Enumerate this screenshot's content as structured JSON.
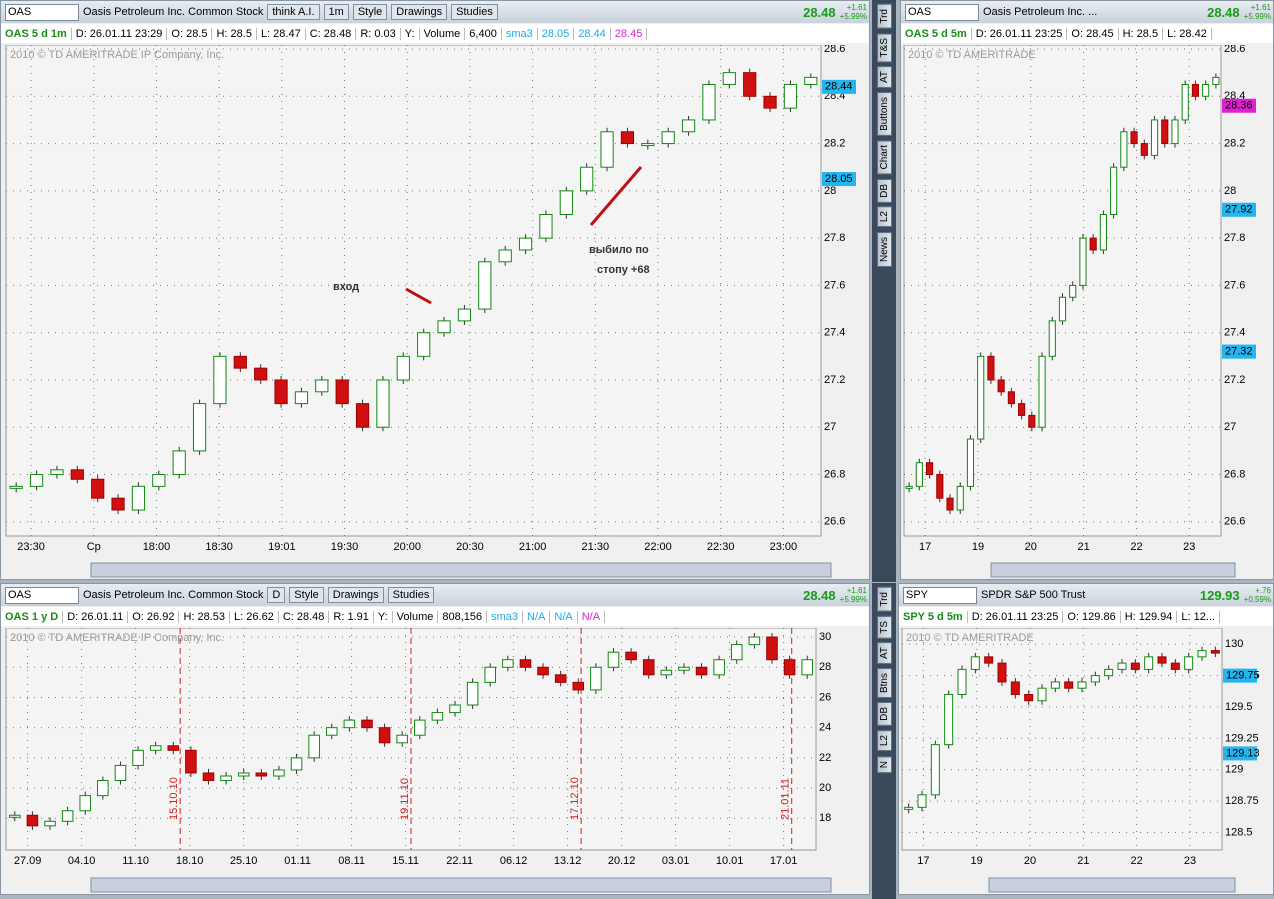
{
  "panels": [
    {
      "symbol": "OAS",
      "name": "Oasis Petroleum Inc. Common Stock",
      "buttons": [
        "think A.I.",
        "1m",
        "Style",
        "Drawings",
        "Studies"
      ],
      "price": "28.48",
      "change": [
        "+1.61",
        "+5.99%"
      ],
      "info": [
        "OAS 5 d 1m",
        "D: 26.01.11 23:29",
        "O: 28.5",
        "H: 28.5",
        "L: 28.47",
        "C: 28.48",
        "R: 0.03",
        "Y:",
        "Volume",
        "6,400",
        "sma3",
        "28.05",
        "28.44",
        "28.45"
      ],
      "copyright": "2010 © TD AMERITRADE IP Company, Inc.",
      "annotations": [
        "вход",
        "выбило по",
        "стопу +68"
      ],
      "chart": {
        "type": "candlestick",
        "closes": [
          26.75,
          26.8,
          26.82,
          26.78,
          26.7,
          26.65,
          26.75,
          26.8,
          26.9,
          27.1,
          27.3,
          27.25,
          27.2,
          27.1,
          27.15,
          27.2,
          27.1,
          27.0,
          27.2,
          27.3,
          27.4,
          27.45,
          27.5,
          27.7,
          27.75,
          27.8,
          27.9,
          28.0,
          28.1,
          28.25,
          28.2,
          28.2,
          28.25,
          28.3,
          28.45,
          28.5,
          28.4,
          28.35,
          28.45,
          28.48
        ],
        "ylim": [
          26.54,
          28.617
        ],
        "yticks": [
          26.6,
          26.8,
          27,
          27.2,
          27.4,
          27.6,
          27.8,
          28,
          28.2,
          28.4,
          28.6
        ],
        "xticks": [
          "23:30",
          "Cp",
          "18:00",
          "18:30",
          "19:01",
          "19:30",
          "20:00",
          "20:30",
          "21:00",
          "21:30",
          "22:00",
          "22:30",
          "23:00"
        ],
        "badges": [
          {
            "value": 28.44,
            "color": "#22b5ef"
          },
          {
            "value": 28.05,
            "color": "#22b5ef"
          }
        ]
      }
    },
    {
      "symbol": "OAS",
      "name": "Oasis Petroleum Inc. ...",
      "buttons": [],
      "price": "28.48",
      "change": [
        "+1.61",
        "+5.99%"
      ],
      "info": [
        "OAS 5 d 5m",
        "D: 26.01.11 23:25",
        "O: 28.45",
        "H: 28.5",
        "L: 28.42"
      ],
      "copyright": "2010 © TD AMERITRADE",
      "chart": {
        "type": "candlestick",
        "closes": [
          26.75,
          26.85,
          26.8,
          26.7,
          26.65,
          26.75,
          26.95,
          27.3,
          27.2,
          27.15,
          27.1,
          27.05,
          27.0,
          27.3,
          27.45,
          27.55,
          27.6,
          27.8,
          27.75,
          27.9,
          28.1,
          28.25,
          28.2,
          28.15,
          28.3,
          28.2,
          28.3,
          28.45,
          28.4,
          28.45,
          28.48
        ],
        "ylim": [
          26.54,
          28.617
        ],
        "yticks": [
          26.6,
          26.8,
          27,
          27.2,
          27.4,
          27.6,
          27.8,
          28,
          28.2,
          28.4,
          28.6
        ],
        "xticks": [
          "17",
          "19",
          "20",
          "21",
          "22",
          "23"
        ],
        "badges": [
          {
            "value": 28.36,
            "color": "#e020d0"
          },
          {
            "value": 27.92,
            "color": "#22b5ef"
          },
          {
            "value": 27.32,
            "color": "#22b5ef"
          }
        ]
      }
    },
    {
      "symbol": "OAS",
      "name": "Oasis Petroleum Inc. Common Stock",
      "buttons": [
        "D",
        "Style",
        "Drawings",
        "Studies"
      ],
      "price": "28.48",
      "change": [
        "+1.61",
        "+5.99%"
      ],
      "info": [
        "OAS 1 y D",
        "D: 26.01.11",
        "O: 26.92",
        "H: 28.53",
        "L: 26.62",
        "C: 28.48",
        "R: 1.91",
        "Y:",
        "Volume",
        "808,156",
        "sma3",
        "N/A",
        "N/A",
        "N/A"
      ],
      "copyright": "2010 © TD AMERITRADE IP Company, Inc.",
      "markers": [
        "15.10.10",
        "19.11.10",
        "17.12.10",
        "21.01.11"
      ],
      "chart": {
        "type": "candlestick",
        "closes": [
          18.2,
          17.5,
          17.8,
          18.5,
          19.5,
          20.5,
          21.5,
          22.5,
          22.8,
          22.5,
          21,
          20.5,
          20.8,
          21,
          20.8,
          21.2,
          22,
          23.5,
          24,
          24.5,
          24,
          23,
          23.5,
          24.5,
          25,
          25.5,
          27,
          28,
          28.5,
          28,
          27.5,
          27,
          26.5,
          28,
          29,
          28.5,
          27.5,
          27.8,
          28,
          27.5,
          28.5,
          29.5,
          30,
          28.5,
          27.5,
          28.5
        ],
        "ylim": [
          15.9,
          30.6
        ],
        "yticks": [
          18,
          20,
          22,
          24,
          26,
          28,
          30
        ],
        "xticks": [
          "27.09",
          "04.10",
          "11.10",
          "18.10",
          "25.10",
          "01.11",
          "08.11",
          "15.11",
          "22.11",
          "06.12",
          "13.12",
          "20.12",
          "03.01",
          "10.01",
          "17.01"
        ],
        "badges": []
      }
    },
    {
      "symbol": "SPY",
      "name": "SPDR S&P 500 Trust",
      "buttons": [],
      "price": "129.93",
      "change": [
        "+.76",
        "+0.59%"
      ],
      "info": [
        "SPY 5 d 5m",
        "D: 26.01.11 23:25",
        "O: 129.86",
        "H: 129.94",
        "L: 12..."
      ],
      "copyright": "2010 © TD AMERITRADE",
      "chart": {
        "type": "candlestick",
        "closes": [
          128.7,
          128.8,
          129.2,
          129.6,
          129.8,
          129.9,
          129.85,
          129.7,
          129.6,
          129.55,
          129.65,
          129.7,
          129.65,
          129.7,
          129.75,
          129.8,
          129.85,
          129.8,
          129.9,
          129.85,
          129.8,
          129.9,
          129.95,
          129.93
        ],
        "ylim": [
          128.36,
          130.13
        ],
        "yticks": [
          128.5,
          128.75,
          129,
          129.25,
          129.5,
          129.75,
          130
        ],
        "xticks": [
          "17",
          "19",
          "20",
          "21",
          "22",
          "23"
        ],
        "badges": [
          {
            "value": 129.75,
            "color": "#22b5ef"
          },
          {
            "value": 129.13,
            "color": "#22b5ef"
          }
        ]
      }
    }
  ],
  "sidebar_top": [
    "Trd",
    "T&S",
    "AT",
    "Buttons",
    "Chart",
    "DB",
    "L2",
    "News"
  ],
  "sidebar_bottom": [
    "Trd",
    "TS",
    "AT",
    "Btns",
    "DB",
    "L2",
    "N"
  ]
}
